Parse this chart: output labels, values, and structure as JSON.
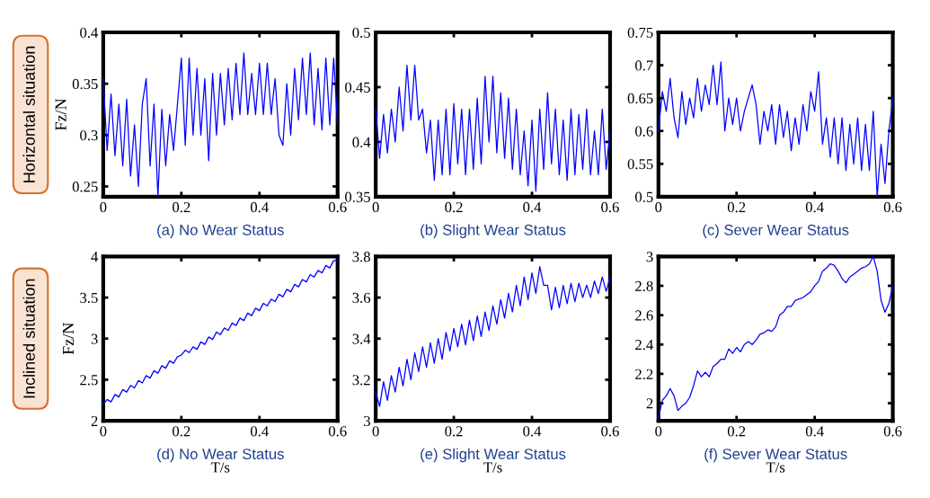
{
  "chart_data": [
    {
      "type": "line",
      "title": "(a) No Wear Status",
      "ylabel": "Fz/N",
      "annotations": [
        "Horizontal situation"
      ],
      "x": [
        0,
        0.01,
        0.02,
        0.03,
        0.04,
        0.05,
        0.06,
        0.07,
        0.08,
        0.09,
        0.1,
        0.11,
        0.12,
        0.13,
        0.14,
        0.15,
        0.16,
        0.17,
        0.18,
        0.19,
        0.2,
        0.21,
        0.22,
        0.23,
        0.24,
        0.25,
        0.26,
        0.27,
        0.28,
        0.29,
        0.3,
        0.31,
        0.32,
        0.33,
        0.34,
        0.35,
        0.36,
        0.37,
        0.38,
        0.39,
        0.4,
        0.41,
        0.42,
        0.43,
        0.44,
        0.45,
        0.46,
        0.47,
        0.48,
        0.49,
        0.5,
        0.51,
        0.52,
        0.53,
        0.54,
        0.55,
        0.56,
        0.57,
        0.58,
        0.59,
        0.6
      ],
      "series": [
        {
          "color": "#0000ff",
          "values": [
            0.355,
            0.285,
            0.34,
            0.28,
            0.33,
            0.27,
            0.335,
            0.26,
            0.31,
            0.25,
            0.33,
            0.355,
            0.27,
            0.33,
            0.24,
            0.325,
            0.27,
            0.32,
            0.285,
            0.33,
            0.375,
            0.29,
            0.375,
            0.3,
            0.365,
            0.3,
            0.355,
            0.275,
            0.36,
            0.3,
            0.36,
            0.31,
            0.365,
            0.315,
            0.37,
            0.32,
            0.38,
            0.32,
            0.36,
            0.32,
            0.37,
            0.32,
            0.37,
            0.32,
            0.355,
            0.3,
            0.29,
            0.35,
            0.3,
            0.365,
            0.315,
            0.375,
            0.32,
            0.38,
            0.31,
            0.365,
            0.305,
            0.375,
            0.31,
            0.375,
            0.31
          ]
        }
      ],
      "xlim": [
        0,
        0.6
      ],
      "xticks": [
        0,
        0.2,
        0.4,
        0.6
      ],
      "ylim": [
        0.24,
        0.4
      ],
      "yticks": [
        0.25,
        0.3,
        0.35,
        0.4
      ]
    },
    {
      "type": "line",
      "title": "(b) Slight Wear Status",
      "x": [
        0,
        0.01,
        0.02,
        0.03,
        0.04,
        0.05,
        0.06,
        0.07,
        0.08,
        0.09,
        0.1,
        0.11,
        0.12,
        0.13,
        0.14,
        0.15,
        0.16,
        0.17,
        0.18,
        0.19,
        0.2,
        0.21,
        0.22,
        0.23,
        0.24,
        0.25,
        0.26,
        0.27,
        0.28,
        0.29,
        0.3,
        0.31,
        0.32,
        0.33,
        0.34,
        0.35,
        0.36,
        0.37,
        0.38,
        0.39,
        0.4,
        0.41,
        0.42,
        0.43,
        0.44,
        0.45,
        0.46,
        0.47,
        0.48,
        0.49,
        0.5,
        0.51,
        0.52,
        0.53,
        0.54,
        0.55,
        0.56,
        0.57,
        0.58,
        0.59,
        0.6
      ],
      "series": [
        {
          "color": "#0000ff",
          "values": [
            0.43,
            0.385,
            0.425,
            0.39,
            0.43,
            0.4,
            0.45,
            0.41,
            0.47,
            0.42,
            0.47,
            0.42,
            0.43,
            0.39,
            0.42,
            0.365,
            0.42,
            0.37,
            0.43,
            0.37,
            0.435,
            0.38,
            0.43,
            0.37,
            0.43,
            0.375,
            0.44,
            0.38,
            0.46,
            0.4,
            0.46,
            0.39,
            0.445,
            0.385,
            0.44,
            0.375,
            0.43,
            0.37,
            0.41,
            0.36,
            0.42,
            0.355,
            0.43,
            0.375,
            0.445,
            0.38,
            0.43,
            0.37,
            0.42,
            0.365,
            0.43,
            0.37,
            0.425,
            0.375,
            0.43,
            0.37,
            0.41,
            0.37,
            0.43,
            0.375,
            0.41
          ]
        }
      ],
      "xlim": [
        0,
        0.6
      ],
      "xticks": [
        0,
        0.2,
        0.4,
        0.6
      ],
      "ylim": [
        0.35,
        0.5
      ],
      "yticks": [
        0.35,
        0.4,
        0.45,
        0.5
      ]
    },
    {
      "type": "line",
      "title": "(c) Sever Wear Status",
      "x": [
        0,
        0.01,
        0.02,
        0.03,
        0.04,
        0.05,
        0.06,
        0.07,
        0.08,
        0.09,
        0.1,
        0.11,
        0.12,
        0.13,
        0.14,
        0.15,
        0.16,
        0.17,
        0.18,
        0.19,
        0.2,
        0.21,
        0.22,
        0.23,
        0.24,
        0.25,
        0.26,
        0.27,
        0.28,
        0.29,
        0.3,
        0.31,
        0.32,
        0.33,
        0.34,
        0.35,
        0.36,
        0.37,
        0.38,
        0.39,
        0.4,
        0.41,
        0.42,
        0.43,
        0.44,
        0.45,
        0.46,
        0.47,
        0.48,
        0.49,
        0.5,
        0.51,
        0.52,
        0.53,
        0.54,
        0.55,
        0.56,
        0.57,
        0.58,
        0.59,
        0.6
      ],
      "series": [
        {
          "color": "#0000ff",
          "values": [
            0.6,
            0.66,
            0.63,
            0.68,
            0.62,
            0.59,
            0.66,
            0.61,
            0.65,
            0.62,
            0.68,
            0.63,
            0.67,
            0.64,
            0.7,
            0.64,
            0.705,
            0.6,
            0.65,
            0.61,
            0.65,
            0.6,
            0.63,
            0.65,
            0.67,
            0.64,
            0.58,
            0.63,
            0.6,
            0.64,
            0.58,
            0.64,
            0.59,
            0.63,
            0.57,
            0.62,
            0.58,
            0.64,
            0.6,
            0.66,
            0.63,
            0.69,
            0.58,
            0.62,
            0.56,
            0.62,
            0.55,
            0.62,
            0.54,
            0.61,
            0.55,
            0.62,
            0.54,
            0.61,
            0.54,
            0.63,
            0.5,
            0.58,
            0.52,
            0.6,
            0.65
          ]
        }
      ],
      "xlim": [
        0,
        0.6
      ],
      "xticks": [
        0,
        0.2,
        0.4,
        0.6
      ],
      "ylim": [
        0.5,
        0.75
      ],
      "yticks": [
        0.5,
        0.55,
        0.6,
        0.65,
        0.7,
        0.75
      ]
    },
    {
      "type": "line",
      "title": "(d) No Wear Status",
      "xlabel": "T/s",
      "ylabel": "Fz/N",
      "annotations": [
        "Inclined situation"
      ],
      "x": [
        0,
        0.01,
        0.02,
        0.03,
        0.04,
        0.05,
        0.06,
        0.07,
        0.08,
        0.09,
        0.1,
        0.11,
        0.12,
        0.13,
        0.14,
        0.15,
        0.16,
        0.17,
        0.18,
        0.19,
        0.2,
        0.21,
        0.22,
        0.23,
        0.24,
        0.25,
        0.26,
        0.27,
        0.28,
        0.29,
        0.3,
        0.31,
        0.32,
        0.33,
        0.34,
        0.35,
        0.36,
        0.37,
        0.38,
        0.39,
        0.4,
        0.41,
        0.42,
        0.43,
        0.44,
        0.45,
        0.46,
        0.47,
        0.48,
        0.49,
        0.5,
        0.51,
        0.52,
        0.53,
        0.54,
        0.55,
        0.56,
        0.57,
        0.58,
        0.59,
        0.6
      ],
      "series": [
        {
          "color": "#0000ff",
          "values": [
            2.2,
            2.26,
            2.23,
            2.32,
            2.29,
            2.38,
            2.35,
            2.43,
            2.4,
            2.49,
            2.46,
            2.55,
            2.52,
            2.61,
            2.58,
            2.67,
            2.64,
            2.73,
            2.7,
            2.78,
            2.8,
            2.86,
            2.83,
            2.9,
            2.87,
            2.96,
            2.93,
            3.02,
            2.99,
            3.08,
            3.05,
            3.13,
            3.1,
            3.19,
            3.16,
            3.25,
            3.22,
            3.31,
            3.28,
            3.37,
            3.34,
            3.43,
            3.4,
            3.48,
            3.45,
            3.54,
            3.51,
            3.6,
            3.57,
            3.66,
            3.63,
            3.72,
            3.69,
            3.78,
            3.75,
            3.83,
            3.8,
            3.89,
            3.86,
            3.95,
            3.95
          ]
        }
      ],
      "xlim": [
        0,
        0.6
      ],
      "xticks": [
        0,
        0.2,
        0.4,
        0.6
      ],
      "ylim": [
        2,
        4
      ],
      "yticks": [
        2,
        2.5,
        3,
        3.5,
        4
      ]
    },
    {
      "type": "line",
      "title": "(e) Slight Wear Status",
      "xlabel": "T/s",
      "x": [
        0,
        0.01,
        0.02,
        0.03,
        0.04,
        0.05,
        0.06,
        0.07,
        0.08,
        0.09,
        0.1,
        0.11,
        0.12,
        0.13,
        0.14,
        0.15,
        0.16,
        0.17,
        0.18,
        0.19,
        0.2,
        0.21,
        0.22,
        0.23,
        0.24,
        0.25,
        0.26,
        0.27,
        0.28,
        0.29,
        0.3,
        0.31,
        0.32,
        0.33,
        0.34,
        0.35,
        0.36,
        0.37,
        0.38,
        0.39,
        0.4,
        0.41,
        0.42,
        0.43,
        0.44,
        0.45,
        0.46,
        0.47,
        0.48,
        0.49,
        0.5,
        0.51,
        0.52,
        0.53,
        0.54,
        0.55,
        0.56,
        0.57,
        0.58,
        0.59,
        0.6
      ],
      "series": [
        {
          "color": "#0000ff",
          "values": [
            3.14,
            3.07,
            3.19,
            3.1,
            3.22,
            3.14,
            3.26,
            3.17,
            3.3,
            3.2,
            3.33,
            3.24,
            3.36,
            3.26,
            3.38,
            3.28,
            3.4,
            3.3,
            3.43,
            3.34,
            3.45,
            3.36,
            3.47,
            3.37,
            3.49,
            3.39,
            3.51,
            3.41,
            3.53,
            3.44,
            3.56,
            3.47,
            3.59,
            3.5,
            3.62,
            3.53,
            3.66,
            3.56,
            3.7,
            3.59,
            3.72,
            3.62,
            3.75,
            3.66,
            3.66,
            3.54,
            3.65,
            3.55,
            3.66,
            3.57,
            3.67,
            3.58,
            3.67,
            3.6,
            3.66,
            3.6,
            3.68,
            3.62,
            3.7,
            3.63,
            3.7
          ]
        }
      ],
      "xlim": [
        0,
        0.6
      ],
      "xticks": [
        0,
        0.2,
        0.4,
        0.6
      ],
      "ylim": [
        3,
        3.8
      ],
      "yticks": [
        3,
        3.2,
        3.4,
        3.6,
        3.8
      ]
    },
    {
      "type": "line",
      "title": "(f) Sever Wear Status",
      "xlabel": "T/s",
      "x": [
        0,
        0.01,
        0.02,
        0.03,
        0.04,
        0.05,
        0.06,
        0.07,
        0.08,
        0.09,
        0.1,
        0.11,
        0.12,
        0.13,
        0.14,
        0.15,
        0.16,
        0.17,
        0.18,
        0.19,
        0.2,
        0.21,
        0.22,
        0.23,
        0.24,
        0.25,
        0.26,
        0.27,
        0.28,
        0.29,
        0.3,
        0.31,
        0.32,
        0.33,
        0.34,
        0.35,
        0.36,
        0.37,
        0.38,
        0.39,
        0.4,
        0.41,
        0.42,
        0.43,
        0.44,
        0.45,
        0.46,
        0.47,
        0.48,
        0.49,
        0.5,
        0.51,
        0.52,
        0.53,
        0.54,
        0.55,
        0.56,
        0.57,
        0.58,
        0.59,
        0.6
      ],
      "series": [
        {
          "color": "#0000ff",
          "values": [
            1.9,
            2.02,
            2.05,
            2.1,
            2.05,
            1.95,
            1.98,
            2.0,
            2.04,
            2.12,
            2.22,
            2.18,
            2.21,
            2.18,
            2.25,
            2.27,
            2.3,
            2.3,
            2.37,
            2.34,
            2.38,
            2.35,
            2.4,
            2.42,
            2.4,
            2.43,
            2.47,
            2.48,
            2.5,
            2.49,
            2.52,
            2.6,
            2.62,
            2.66,
            2.66,
            2.7,
            2.71,
            2.72,
            2.74,
            2.76,
            2.8,
            2.83,
            2.9,
            2.92,
            2.95,
            2.94,
            2.9,
            2.85,
            2.82,
            2.86,
            2.88,
            2.9,
            2.92,
            2.93,
            2.95,
            3.0,
            2.9,
            2.7,
            2.62,
            2.68,
            2.8
          ]
        }
      ],
      "xlim": [
        0,
        0.6
      ],
      "xticks": [
        0,
        0.2,
        0.4,
        0.6
      ],
      "ylim": [
        1.88,
        3
      ],
      "yticks": [
        2,
        2.2,
        2.4,
        2.6,
        2.8,
        3
      ]
    }
  ]
}
